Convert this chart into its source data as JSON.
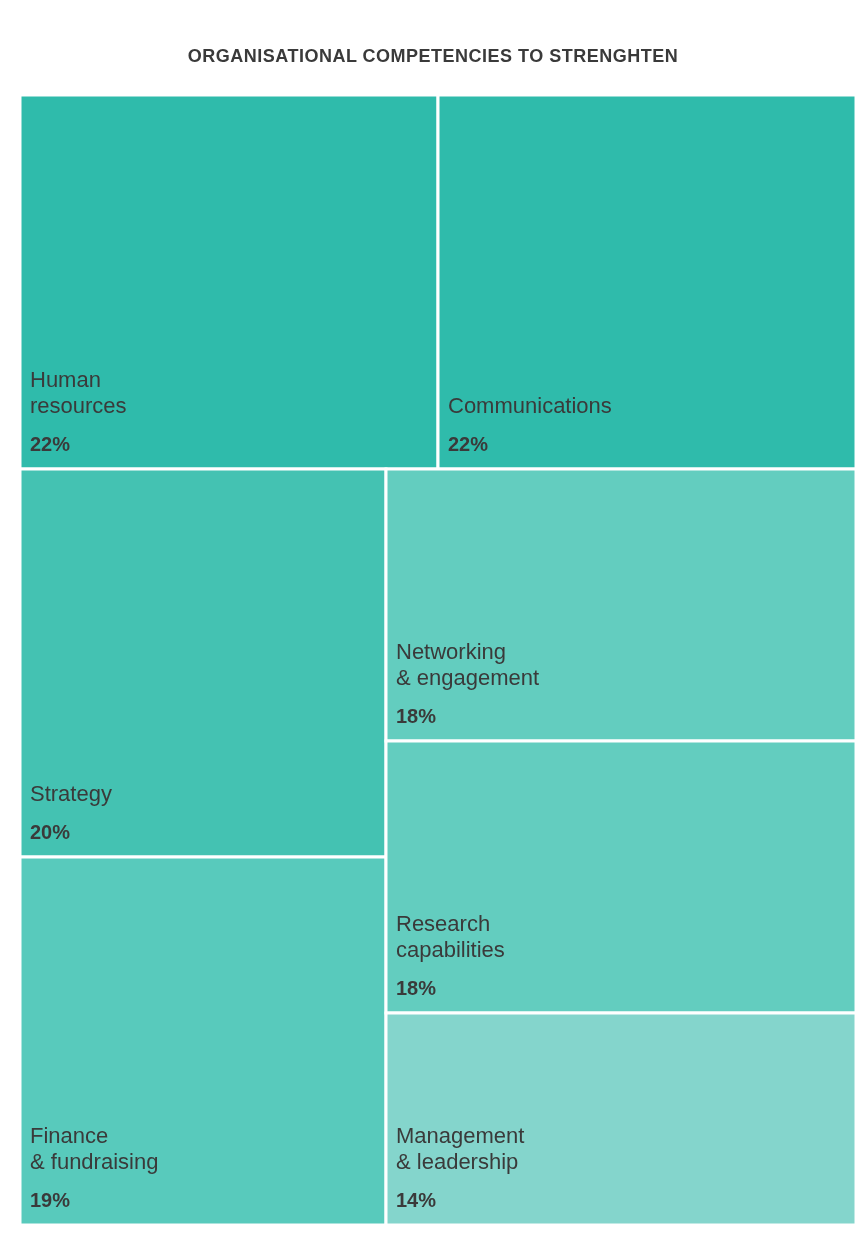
{
  "chart_data": {
    "type": "other",
    "title": "ORGANISATIONAL COMPETENCIES TO STRENGHTEN",
    "categories": [
      "Human resources",
      "Communications",
      "Strategy",
      "Finance & fundraising",
      "Networking & engagement",
      "Research capabilities",
      "Management & leadership"
    ],
    "values": [
      22,
      22,
      20,
      19,
      18,
      18,
      14
    ],
    "value_labels": [
      "22%",
      "22%",
      "20%",
      "19%",
      "18%",
      "18%",
      "14%"
    ],
    "colors": [
      "#2fbbab",
      "#2fbbab",
      "#44c2b2",
      "#58cabc",
      "#63cdbf",
      "#63cdbf",
      "#84d5cc"
    ]
  }
}
